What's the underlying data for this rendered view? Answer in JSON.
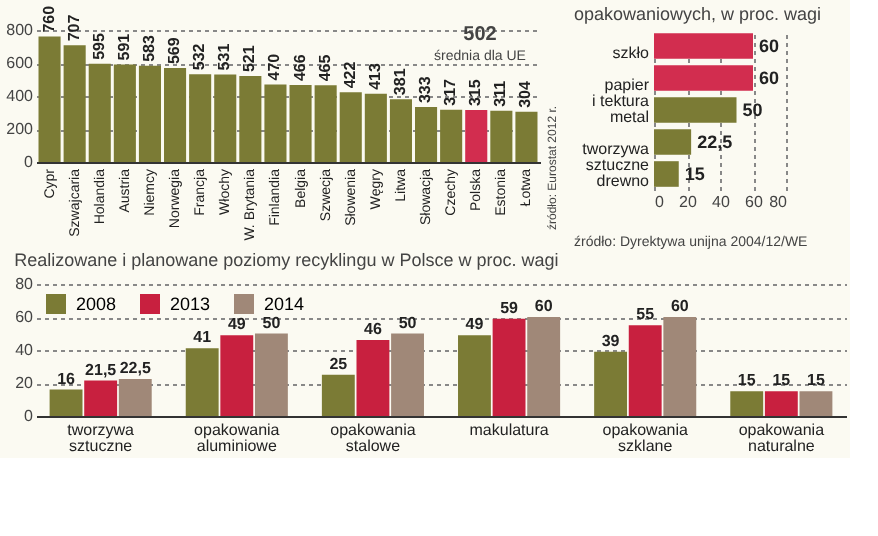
{
  "chart_data": [
    {
      "type": "bar",
      "categories": [
        "Cypr",
        "Szwajcaria",
        "Holandia",
        "Austria",
        "Niemcy",
        "Norwegia",
        "Francja",
        "Włochy",
        "W. Brytania",
        "Finlandia",
        "Belgia",
        "Szwecja",
        "Słowenia",
        "Węgry",
        "Litwa",
        "Słowacja",
        "Czechy",
        "Polska",
        "Estonia",
        "Łotwa"
      ],
      "values": [
        760,
        707,
        595,
        591,
        583,
        569,
        532,
        531,
        521,
        470,
        466,
        465,
        422,
        413,
        381,
        333,
        317,
        315,
        311,
        304
      ],
      "colors": [
        "#7b7b35",
        "#7b7b35",
        "#7b7b35",
        "#7b7b35",
        "#7b7b35",
        "#7b7b35",
        "#7b7b35",
        "#7b7b35",
        "#7b7b35",
        "#7b7b35",
        "#7b7b35",
        "#7b7b35",
        "#7b7b35",
        "#7b7b35",
        "#7b7b35",
        "#7b7b35",
        "#7b7b35",
        "#d22d4f",
        "#7b7b35",
        "#7b7b35"
      ],
      "ylim": [
        0,
        800
      ],
      "yticks": [
        0,
        200,
        400,
        600,
        800
      ],
      "grid": "y",
      "data_labels": true,
      "annotations": [
        "502",
        "średnia dla UE",
        "źródło: Eurostat 2012 r."
      ]
    },
    {
      "type": "bar",
      "orientation": "horizontal",
      "title": "opakowaniowych, w proc. wagi",
      "categories": [
        "szkło",
        "papier\ni tektura",
        "metal",
        "tworzywa\nsztuczne",
        "drewno"
      ],
      "values": [
        60,
        60,
        50,
        22.5,
        15
      ],
      "value_labels": [
        "60",
        "60",
        "50",
        "22,5",
        "15"
      ],
      "colors": [
        "#d22d4f",
        "#d22d4f",
        "#7b7b35",
        "#7b7b35",
        "#7b7b35"
      ],
      "xlim": [
        0,
        80
      ],
      "xticks": [
        0,
        20,
        40,
        60,
        80
      ],
      "grid": "x",
      "annotations": [
        "źródło: Dyrektywa unijna 2004/12/WE"
      ]
    },
    {
      "type": "bar",
      "title": "Realizowane i planowane poziomy recyklingu w Polsce w proc. wagi",
      "categories": [
        "tworzywa\nsztuczne",
        "opakowania\naluminiowe",
        "opakowania\nstalowe",
        "makulatura",
        "opakowania\nszklane",
        "opakowania\nnaturalne"
      ],
      "series": [
        {
          "name": "2008",
          "color": "#7b7b35",
          "values": [
            16,
            41,
            25,
            49,
            39,
            15
          ],
          "value_labels": [
            "16",
            "41",
            "25",
            "49",
            "39",
            "15"
          ]
        },
        {
          "name": "2013",
          "color": "#c8203f",
          "values": [
            21.5,
            49,
            46,
            59,
            55,
            15
          ],
          "value_labels": [
            "21,5",
            "49",
            "46",
            "59",
            "55",
            "15"
          ]
        },
        {
          "name": "2014",
          "color": "#a08878",
          "values": [
            22.5,
            50,
            50,
            60,
            60,
            15
          ],
          "value_labels": [
            "22,5",
            "50",
            "50",
            "60",
            "60",
            "15"
          ]
        }
      ],
      "ylim": [
        0,
        80
      ],
      "yticks": [
        0,
        20,
        40,
        60,
        80
      ],
      "grid": "y",
      "legend": "top left"
    }
  ]
}
